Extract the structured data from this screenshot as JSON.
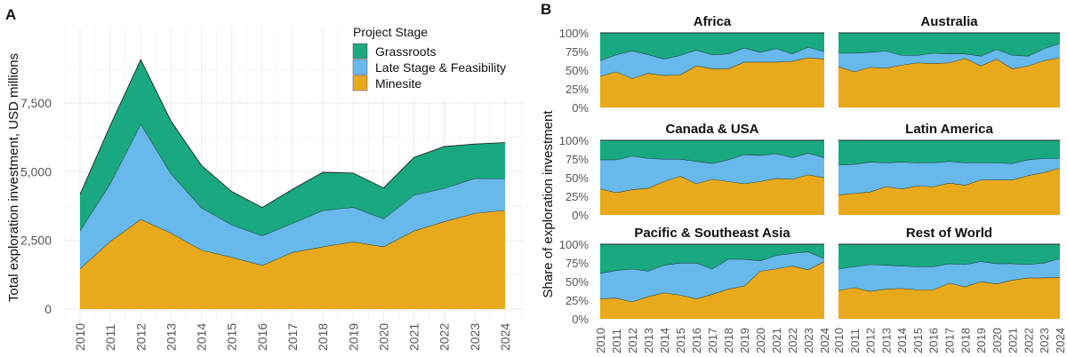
{
  "colors": {
    "Grassroots": "#1aa880",
    "Late Stage & Feasibility": "#66b9ea",
    "Minesite": "#e8a91c"
  },
  "chart_data": [
    {
      "panel_label": "A",
      "type": "area",
      "stacked": true,
      "xlabel": "",
      "ylabel": "Total exploration investment, USD millions",
      "ylim": [
        0,
        9500
      ],
      "yticks": [
        0,
        2500,
        5000,
        7500
      ],
      "ytick_labels": [
        "0",
        "2,500",
        "5,000",
        "7,500"
      ],
      "grid": true,
      "x": [
        2010,
        2011,
        2012,
        2013,
        2014,
        2015,
        2016,
        2017,
        2018,
        2019,
        2020,
        2021,
        2022,
        2023,
        2024
      ],
      "legend": {
        "title": "Project Stage",
        "placement": "top-right",
        "entries": [
          "Grassroots",
          "Late Stage & Feasibility",
          "Minesite"
        ]
      },
      "series": [
        {
          "name": "Minesite",
          "values": [
            1470,
            2470,
            3270,
            2770,
            2150,
            1890,
            1590,
            2070,
            2270,
            2450,
            2270,
            2850,
            3190,
            3490,
            3600
          ]
        },
        {
          "name": "Late Stage & Feasibility",
          "values": [
            1380,
            2110,
            3470,
            2160,
            1540,
            1180,
            1080,
            1050,
            1320,
            1260,
            1020,
            1300,
            1210,
            1270,
            1150
          ]
        },
        {
          "name": "Grassroots",
          "values": [
            1330,
            2110,
            2340,
            1910,
            1540,
            1210,
            1030,
            1240,
            1390,
            1240,
            1120,
            1370,
            1520,
            1250,
            1310
          ]
        }
      ]
    },
    {
      "panel_label": "B",
      "type": "area",
      "stacked": true,
      "normalized": true,
      "ylabel": "Share of exploration investment",
      "ylim": [
        0,
        100
      ],
      "ytick_labels": [
        "0%",
        "25%",
        "50%",
        "75%",
        "100%"
      ],
      "grid": true,
      "x": [
        2010,
        2011,
        2012,
        2013,
        2014,
        2015,
        2016,
        2017,
        2018,
        2019,
        2020,
        2021,
        2022,
        2023,
        2024
      ],
      "facets": [
        {
          "title": "Africa",
          "series": [
            {
              "name": "Minesite",
              "values": [
                42,
                48,
                39,
                46,
                43,
                44,
                56,
                52,
                52,
                61,
                61,
                61,
                62,
                67,
                65
              ]
            },
            {
              "name": "Late Stage & Feasibility",
              "values": [
                21,
                23,
                37,
                25,
                22,
                26,
                21,
                19,
                20,
                19,
                13,
                18,
                10,
                14,
                10
              ]
            },
            {
              "name": "Grassroots",
              "values": [
                37,
                29,
                24,
                29,
                35,
                30,
                23,
                29,
                28,
                20,
                26,
                21,
                28,
                19,
                25
              ]
            }
          ]
        },
        {
          "title": "Australia",
          "series": [
            {
              "name": "Minesite",
              "values": [
                55,
                48,
                54,
                53,
                57,
                60,
                59,
                60,
                66,
                56,
                65,
                52,
                56,
                63,
                67
              ]
            },
            {
              "name": "Late Stage & Feasibility",
              "values": [
                18,
                25,
                20,
                23,
                13,
                10,
                14,
                12,
                6,
                13,
                13,
                18,
                13,
                16,
                19
              ]
            },
            {
              "name": "Grassroots",
              "values": [
                27,
                27,
                26,
                24,
                30,
                30,
                27,
                28,
                28,
                31,
                22,
                30,
                31,
                21,
                14
              ]
            }
          ]
        },
        {
          "title": "Canada & USA",
          "series": [
            {
              "name": "Minesite",
              "values": [
                35,
                30,
                34,
                36,
                45,
                52,
                42,
                48,
                45,
                42,
                45,
                49,
                48,
                54,
                50
              ]
            },
            {
              "name": "Late Stage & Feasibility",
              "values": [
                39,
                44,
                45,
                40,
                30,
                23,
                30,
                21,
                29,
                39,
                35,
                33,
                29,
                29,
                27
              ]
            },
            {
              "name": "Grassroots",
              "values": [
                26,
                26,
                21,
                24,
                25,
                25,
                28,
                31,
                26,
                19,
                20,
                18,
                23,
                17,
                23
              ]
            }
          ]
        },
        {
          "title": "Latin America",
          "series": [
            {
              "name": "Minesite",
              "values": [
                27,
                29,
                31,
                38,
                35,
                39,
                38,
                43,
                40,
                47,
                47,
                47,
                53,
                57,
                63
              ]
            },
            {
              "name": "Late Stage & Feasibility",
              "values": [
                40,
                39,
                40,
                32,
                36,
                31,
                32,
                29,
                30,
                23,
                23,
                22,
                21,
                19,
                13
              ]
            },
            {
              "name": "Grassroots",
              "values": [
                33,
                32,
                29,
                30,
                29,
                30,
                30,
                28,
                30,
                30,
                30,
                31,
                26,
                24,
                24
              ]
            }
          ]
        },
        {
          "title": "Pacific & Southeast Asia",
          "series": [
            {
              "name": "Minesite",
              "values": [
                27,
                28,
                23,
                30,
                35,
                32,
                27,
                33,
                40,
                44,
                64,
                67,
                71,
                66,
                77
              ]
            },
            {
              "name": "Late Stage & Feasibility",
              "values": [
                34,
                37,
                44,
                34,
                37,
                43,
                48,
                34,
                40,
                36,
                14,
                18,
                17,
                24,
                4
              ]
            },
            {
              "name": "Grassroots",
              "values": [
                39,
                35,
                33,
                36,
                28,
                25,
                25,
                33,
                20,
                20,
                22,
                15,
                12,
                10,
                19
              ]
            }
          ]
        },
        {
          "title": "Rest of World",
          "series": [
            {
              "name": "Minesite",
              "values": [
                38,
                42,
                37,
                40,
                41,
                39,
                39,
                48,
                43,
                50,
                47,
                52,
                55,
                55,
                56
              ]
            },
            {
              "name": "Late Stage & Feasibility",
              "values": [
                29,
                28,
                36,
                32,
                30,
                31,
                31,
                26,
                30,
                27,
                27,
                22,
                18,
                20,
                25
              ]
            },
            {
              "name": "Grassroots",
              "values": [
                33,
                30,
                27,
                28,
                29,
                30,
                30,
                26,
                27,
                23,
                26,
                26,
                27,
                25,
                19
              ]
            }
          ]
        }
      ]
    }
  ]
}
